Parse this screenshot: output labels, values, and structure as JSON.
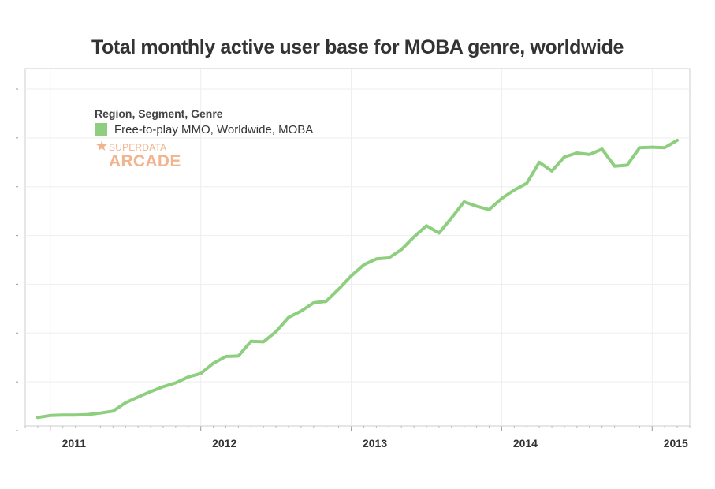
{
  "chart_data": {
    "type": "line",
    "title": "Total monthly active user base for MOBA genre, worldwide",
    "xlabel": "",
    "ylabel": "",
    "x_tick_labels": [
      "2011",
      "2012",
      "2013",
      "2014",
      "2015"
    ],
    "x_range": [
      "2010-11",
      "2015-04"
    ],
    "ylim": [
      0,
      7
    ],
    "y_ticks": [
      0,
      1,
      2,
      3,
      4,
      5,
      6,
      7
    ],
    "y_tick_labels_visible": false,
    "grid": true,
    "legend": {
      "title": "Region, Segment, Genre",
      "placement": "top-left",
      "entries": [
        {
          "name": "Free-to-play MMO, Worldwide, MOBA",
          "color": "#8ecf7f"
        }
      ]
    },
    "series": [
      {
        "name": "Free-to-play MMO, Worldwide, MOBA",
        "color": "#8ecf7f",
        "x": [
          "2010-12",
          "2011-01",
          "2011-02",
          "2011-03",
          "2011-04",
          "2011-05",
          "2011-06",
          "2011-07",
          "2011-08",
          "2011-09",
          "2011-10",
          "2011-11",
          "2011-12",
          "2012-01",
          "2012-02",
          "2012-03",
          "2012-04",
          "2012-05",
          "2012-06",
          "2012-07",
          "2012-08",
          "2012-09",
          "2012-10",
          "2012-11",
          "2012-12",
          "2013-01",
          "2013-02",
          "2013-03",
          "2013-04",
          "2013-05",
          "2013-06",
          "2013-07",
          "2013-08",
          "2013-09",
          "2013-10",
          "2013-11",
          "2013-12",
          "2014-01",
          "2014-02",
          "2014-03",
          "2014-04",
          "2014-05",
          "2014-06",
          "2014-07",
          "2014-08",
          "2014-09",
          "2014-10",
          "2014-11",
          "2014-12",
          "2015-01",
          "2015-02",
          "2015-03"
        ],
        "values": [
          0.27,
          0.31,
          0.32,
          0.32,
          0.33,
          0.36,
          0.4,
          0.57,
          0.69,
          0.8,
          0.9,
          0.98,
          1.1,
          1.17,
          1.38,
          1.52,
          1.53,
          1.83,
          1.82,
          2.03,
          2.32,
          2.45,
          2.62,
          2.65,
          2.9,
          3.17,
          3.4,
          3.52,
          3.54,
          3.71,
          3.97,
          4.2,
          4.05,
          4.36,
          4.69,
          4.6,
          4.53,
          4.76,
          4.93,
          5.07,
          5.5,
          5.32,
          5.61,
          5.69,
          5.66,
          5.77,
          5.42,
          5.44,
          5.8,
          5.81,
          5.8,
          5.95
        ]
      }
    ]
  },
  "branding": {
    "logo_top_text": "SUPERDATA",
    "logo_bottom_text": "ARCADE",
    "logo_color": "#f0b48e"
  },
  "colors": {
    "line": "#8ecf7f",
    "grid": "#eeeeee",
    "axis": "#cccccc",
    "text": "#333333"
  }
}
